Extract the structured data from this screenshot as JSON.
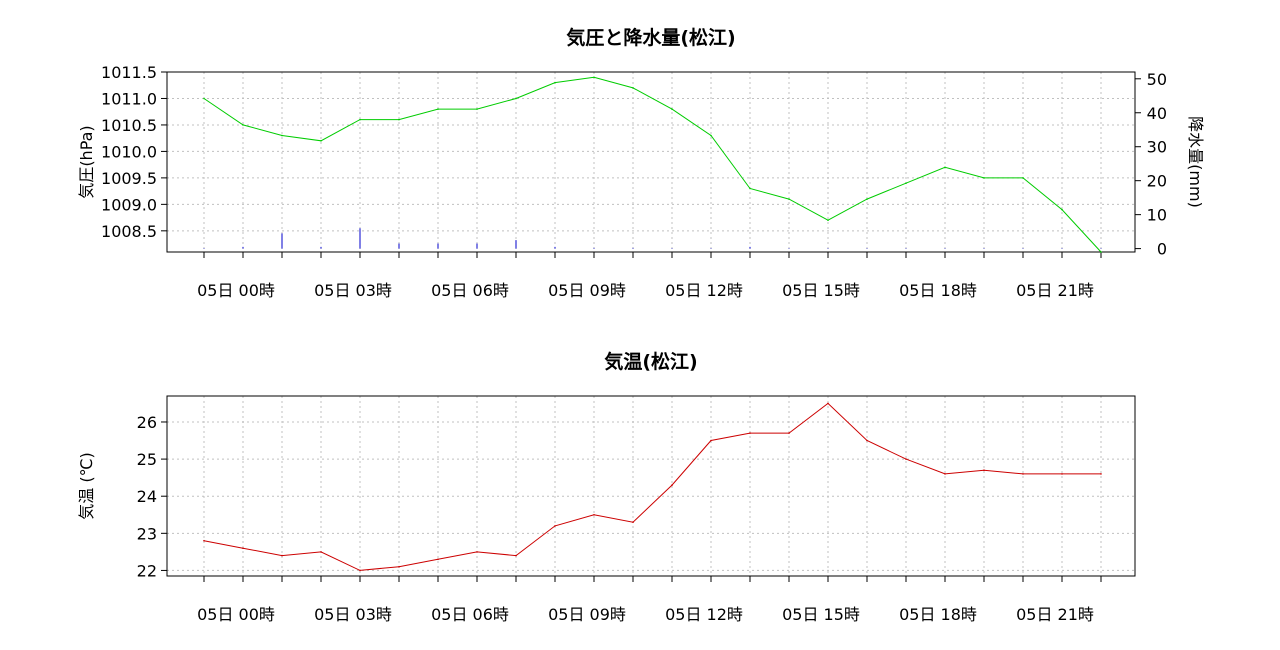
{
  "chart_data": [
    {
      "type": "line",
      "title": "気圧と降水量(松江)",
      "ylabel": "気圧(hPa)",
      "y2label": "降水量(mm)",
      "x_labels": [
        "05日 00時",
        "05日 03時",
        "05日 06時",
        "05日 09時",
        "05日 12時",
        "05日 15時",
        "05日 18時",
        "05日 21時"
      ],
      "ylim": [
        1008.1,
        1011.5
      ],
      "yticks": [
        1011.5,
        1011.0,
        1010.5,
        1010.0,
        1009.5,
        1009.0,
        1008.5
      ],
      "ytick_labels": [
        "1011.5",
        "1011.0",
        "1010.5",
        "1010.0",
        "1009.5",
        "1009.0",
        "1008.5"
      ],
      "y2lim": [
        -1,
        52
      ],
      "y2ticks": [
        0,
        10,
        20,
        30,
        40,
        50
      ],
      "y2tick_labels": [
        "0",
        "10",
        "20",
        "30",
        "40",
        "50"
      ],
      "grid": true,
      "series": [
        {
          "role": "pressure",
          "color": "#00cc00",
          "values": [
            1011.0,
            1010.5,
            1010.3,
            1010.2,
            1010.6,
            1010.6,
            1010.8,
            1010.8,
            1011.0,
            1011.3,
            1011.4,
            1011.2,
            1010.8,
            1010.3,
            1009.3,
            1009.1,
            1008.7,
            1009.1,
            1009.4,
            1009.7,
            1009.5,
            1009.5,
            1008.9,
            1008.1
          ]
        },
        {
          "role": "precipitation",
          "color": "#0000cc",
          "values": [
            0,
            0.5,
            4.5,
            0.5,
            6,
            1.5,
            1.5,
            1.5,
            2.5,
            0.5,
            0.2,
            0.2,
            0,
            0,
            0.5,
            0,
            0,
            0,
            0,
            0,
            0,
            0,
            0,
            0
          ]
        }
      ]
    },
    {
      "type": "line",
      "title": "気温(松江)",
      "ylabel": "気温 (℃)",
      "x_labels": [
        "05日 00時",
        "05日 03時",
        "05日 06時",
        "05日 09時",
        "05日 12時",
        "05日 15時",
        "05日 18時",
        "05日 21時"
      ],
      "ylim": [
        21.85,
        26.7
      ],
      "yticks": [
        22,
        23,
        24,
        25,
        26
      ],
      "ytick_labels": [
        "22",
        "23",
        "24",
        "25",
        "26"
      ],
      "grid": true,
      "series": [
        {
          "role": "temperature",
          "color": "#cc0000",
          "values": [
            22.8,
            22.6,
            22.4,
            22.5,
            22.0,
            22.1,
            22.3,
            22.5,
            22.4,
            23.2,
            23.5,
            23.3,
            24.3,
            25.5,
            25.7,
            25.7,
            26.5,
            25.5,
            25.0,
            24.6,
            24.7,
            24.6,
            24.6,
            24.6
          ]
        }
      ]
    }
  ]
}
